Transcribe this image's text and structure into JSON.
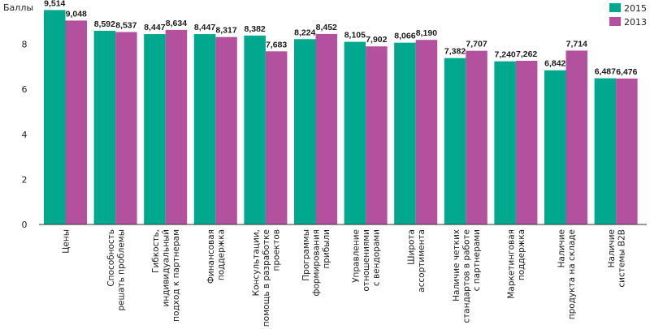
{
  "chart_data": {
    "type": "bar",
    "ylabel": "Баллы",
    "ylim": [
      0,
      9.6
    ],
    "yticks": [
      0,
      2,
      4,
      6,
      8
    ],
    "grid": false,
    "legend_position": "top-right",
    "categories": [
      [
        "Цены"
      ],
      [
        "Способность",
        "решать проблемы"
      ],
      [
        "Гибкость,",
        "индивидуальный",
        "подход к партнерам"
      ],
      [
        "Финансовая",
        "поддержка"
      ],
      [
        "Консультации,",
        "помощь в разработке",
        "проектов"
      ],
      [
        "Программы",
        "формирования",
        "прибыли"
      ],
      [
        "Управление",
        "отношениями",
        "с вендорами"
      ],
      [
        "Широта",
        "ассортимента"
      ],
      [
        "Наличие четких",
        "стандартов в работе",
        "с партнерами"
      ],
      [
        "Маркетинговая",
        "поддержка"
      ],
      [
        "Наличие",
        "продукта на складе"
      ],
      [
        "Наличие",
        "системы B2B"
      ]
    ],
    "series": [
      {
        "name": "2015",
        "color": "#00a88e",
        "values": [
          9.514,
          8.592,
          8.447,
          8.447,
          8.382,
          8.224,
          8.105,
          8.066,
          7.382,
          7.24,
          6.842,
          6.487
        ],
        "labels": [
          "9,514",
          "8,592",
          "8,447",
          "8,447",
          "8,382",
          "8,224",
          "8,105",
          "8,066",
          "7,382",
          "7,240",
          "6,842",
          "6,487"
        ]
      },
      {
        "name": "2013",
        "color": "#b3519f",
        "values": [
          9.048,
          8.537,
          8.634,
          8.317,
          7.683,
          8.452,
          7.902,
          8.19,
          7.707,
          7.262,
          7.714,
          6.476
        ],
        "labels": [
          "9,048",
          "8,537",
          "8,634",
          "8,317",
          "7,683",
          "8,452",
          "7,902",
          "8,190",
          "7,707",
          "7,262",
          "7,714",
          "6,476"
        ]
      }
    ]
  }
}
